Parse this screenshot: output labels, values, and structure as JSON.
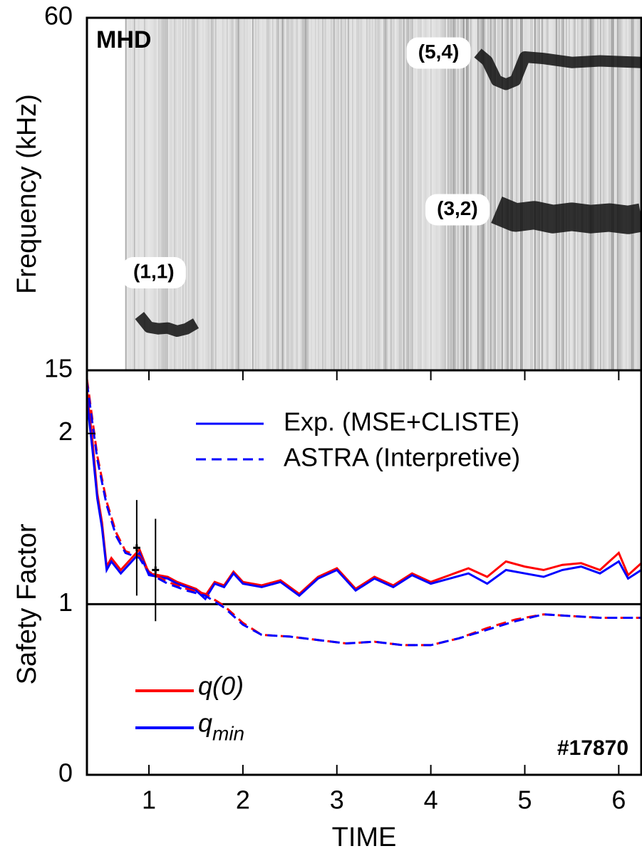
{
  "chart_data": [
    {
      "type": "spectrogram",
      "ylabel": "Frequency (kHz)",
      "panel_label": "MHD",
      "xlim": [
        0.34,
        6.24
      ],
      "ylim": [
        15,
        60
      ],
      "yticks": [
        15,
        60
      ],
      "series": [
        {
          "name": "(1,1)",
          "color": "#111111",
          "x": [
            0.9,
            1.0,
            1.1,
            1.2,
            1.3,
            1.4,
            1.5
          ],
          "values": [
            22,
            20.5,
            20.3,
            20.4,
            20,
            20.3,
            21
          ]
        },
        {
          "name": "(3,2)",
          "color": "#111111",
          "x": [
            4.7,
            4.9,
            5.1,
            5.3,
            5.5,
            5.7,
            5.9,
            6.1,
            6.24
          ],
          "values": [
            35.5,
            34.5,
            34.8,
            34.3,
            34.6,
            34.3,
            34.5,
            34.2,
            34.5
          ]
        },
        {
          "name": "(5,4)",
          "color": "#111111",
          "x": [
            4.5,
            4.6,
            4.7,
            4.8,
            4.9,
            5.0,
            5.2,
            5.5,
            5.8,
            6.24
          ],
          "values": [
            55.5,
            54.5,
            52,
            51.5,
            52,
            55,
            54.8,
            54.3,
            54.5,
            54.3
          ]
        }
      ]
    },
    {
      "type": "line",
      "xlabel": "TIME",
      "ylabel": "Safety Factor",
      "annotation": "#17870",
      "xlim": [
        0.34,
        6.24
      ],
      "xticks": [
        1,
        2,
        3,
        4,
        5,
        6
      ],
      "ylim": [
        0,
        2.37
      ],
      "yticks": [
        0,
        1,
        2
      ],
      "refline": 1,
      "styles": [
        {
          "name": "Exp. (MSE+CLISTE)",
          "dash": "solid"
        },
        {
          "name": "ASTRA (Interpretive)",
          "dash": "dashed"
        }
      ],
      "quantities": [
        {
          "name": "q(0)",
          "color": "#ff0000"
        },
        {
          "name": "q",
          "subscript": "min",
          "color": "#0000ff"
        }
      ],
      "series": [
        {
          "quantity": 0,
          "style": 0,
          "x": [
            0.34,
            0.4,
            0.45,
            0.5,
            0.55,
            0.6,
            0.7,
            0.8,
            0.9,
            1.0,
            1.1,
            1.2,
            1.3,
            1.4,
            1.5,
            1.6,
            1.7,
            1.8,
            1.9,
            2.0,
            2.2,
            2.4,
            2.6,
            2.8,
            3.0,
            3.2,
            3.4,
            3.6,
            3.8,
            4.0,
            4.2,
            4.4,
            4.6,
            4.8,
            5.0,
            5.2,
            5.4,
            5.6,
            5.8,
            6.0,
            6.1,
            6.24
          ],
          "values": [
            2.25,
            1.95,
            1.65,
            1.48,
            1.22,
            1.27,
            1.2,
            1.26,
            1.32,
            1.18,
            1.17,
            1.16,
            1.13,
            1.11,
            1.09,
            1.05,
            1.13,
            1.11,
            1.19,
            1.13,
            1.11,
            1.14,
            1.06,
            1.16,
            1.21,
            1.09,
            1.16,
            1.11,
            1.18,
            1.13,
            1.17,
            1.21,
            1.16,
            1.25,
            1.22,
            1.2,
            1.23,
            1.24,
            1.2,
            1.3,
            1.17,
            1.24
          ]
        },
        {
          "quantity": 1,
          "style": 0,
          "x": [
            0.34,
            0.4,
            0.45,
            0.5,
            0.55,
            0.6,
            0.7,
            0.8,
            0.9,
            1.0,
            1.1,
            1.2,
            1.3,
            1.4,
            1.5,
            1.6,
            1.7,
            1.8,
            1.9,
            2.0,
            2.2,
            2.4,
            2.6,
            2.8,
            3.0,
            3.2,
            3.4,
            3.6,
            3.8,
            4.0,
            4.2,
            4.4,
            4.6,
            4.8,
            5.0,
            5.2,
            5.4,
            5.6,
            5.8,
            6.0,
            6.1,
            6.24
          ],
          "values": [
            2.2,
            1.9,
            1.62,
            1.45,
            1.2,
            1.25,
            1.18,
            1.24,
            1.3,
            1.17,
            1.16,
            1.15,
            1.12,
            1.1,
            1.08,
            1.03,
            1.12,
            1.1,
            1.18,
            1.12,
            1.1,
            1.13,
            1.05,
            1.15,
            1.2,
            1.08,
            1.15,
            1.1,
            1.17,
            1.12,
            1.15,
            1.18,
            1.12,
            1.2,
            1.18,
            1.16,
            1.2,
            1.22,
            1.18,
            1.25,
            1.15,
            1.2
          ]
        },
        {
          "quantity": 0,
          "style": 1,
          "x": [
            0.34,
            0.45,
            0.55,
            0.65,
            0.75,
            0.9,
            1.0,
            1.2,
            1.4,
            1.6,
            1.8,
            2.0,
            2.2,
            2.5,
            2.8,
            3.1,
            3.4,
            3.7,
            4.0,
            4.3,
            4.6,
            4.9,
            5.2,
            5.5,
            5.8,
            6.24
          ],
          "values": [
            2.32,
            1.87,
            1.6,
            1.42,
            1.31,
            1.28,
            1.19,
            1.13,
            1.09,
            1.06,
            0.99,
            0.89,
            0.82,
            0.81,
            0.79,
            0.77,
            0.78,
            0.76,
            0.76,
            0.8,
            0.86,
            0.91,
            0.94,
            0.93,
            0.92,
            0.92
          ]
        },
        {
          "quantity": 1,
          "style": 1,
          "x": [
            0.34,
            0.45,
            0.55,
            0.65,
            0.75,
            0.9,
            1.0,
            1.2,
            1.4,
            1.6,
            1.8,
            2.0,
            2.2,
            2.5,
            2.8,
            3.1,
            3.4,
            3.7,
            4.0,
            4.3,
            4.6,
            4.9,
            5.2,
            5.5,
            5.8,
            6.24
          ],
          "values": [
            2.3,
            1.85,
            1.58,
            1.4,
            1.3,
            1.27,
            1.18,
            1.12,
            1.08,
            1.05,
            0.98,
            0.88,
            0.82,
            0.81,
            0.79,
            0.77,
            0.78,
            0.76,
            0.76,
            0.8,
            0.85,
            0.9,
            0.94,
            0.93,
            0.92,
            0.92
          ]
        }
      ],
      "error_bars": {
        "x": [
          0.87,
          1.07
        ],
        "values": [
          1.33,
          1.2
        ],
        "errors": [
          0.28,
          0.3
        ]
      }
    }
  ]
}
